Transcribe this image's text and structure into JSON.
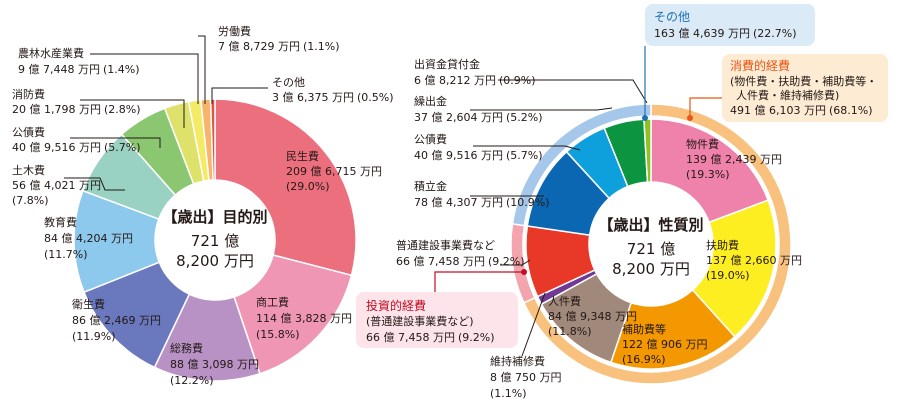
{
  "chart_data": [
    {
      "type": "pie",
      "center": {
        "title": "【歳出】目的別",
        "line1": "721 億",
        "line2": "8,200 万円"
      },
      "slices": [
        {
          "name": "民生費",
          "amount": "209 億 6,715 万円",
          "percent_label": "(29.0%)",
          "value": 29.0,
          "color": "#ec6f7d"
        },
        {
          "name": "商工費",
          "amount": "114 億 3,828 万円",
          "percent_label": "(15.8%)",
          "value": 15.8,
          "color": "#f096b5"
        },
        {
          "name": "総務費",
          "amount": "88 億 3,098 万円",
          "percent_label": "(12.2%)",
          "value": 12.2,
          "color": "#b992c5"
        },
        {
          "name": "衛生費",
          "amount": "86 億 2,469 万円",
          "percent_label": "(11.9%)",
          "value": 11.9,
          "color": "#6a78bd"
        },
        {
          "name": "教育費",
          "amount": "84 億 4,204 万円",
          "percent_label": "(11.7%)",
          "value": 11.7,
          "color": "#8dc9ec"
        },
        {
          "name": "土木費",
          "amount": "56 億 4,021 万円",
          "percent_label": "(7.8%)",
          "value": 7.8,
          "color": "#99d2c3"
        },
        {
          "name": "公債費",
          "amount": "40 億 9,516 万円",
          "percent_label": "(5.7%)",
          "value": 5.7,
          "color": "#8bc770"
        },
        {
          "name": "消防費",
          "amount": "20 億 1,798 万円",
          "percent_label": "(2.8%)",
          "value": 2.8,
          "color": "#dfe26a"
        },
        {
          "name": "農林水産業費",
          "amount": "9 億 7,448 万円",
          "percent_label": "(1.4%)",
          "value": 1.4,
          "color": "#f4ea66"
        },
        {
          "name": "労働費",
          "amount": "7 億 8,729 万円",
          "percent_label": "(1.1%)",
          "value": 1.1,
          "color": "#f7b56c"
        },
        {
          "name": "その他",
          "amount": "3 億 6,375 万円",
          "percent_label": "(0.5%)",
          "value": 0.5,
          "color": "#e8523d"
        }
      ]
    },
    {
      "type": "pie",
      "center": {
        "title": "【歳出】性質別",
        "line1": "721 億",
        "line2": "8,200 万円"
      },
      "slices": [
        {
          "name": "物件費",
          "amount": "139 億 2,439 万円",
          "percent_label": "(19.3%)",
          "value": 19.3,
          "color": "#ef82ab"
        },
        {
          "name": "扶助費",
          "amount": "137 億 2,660 万円",
          "percent_label": "(19.0%)",
          "value": 19.0,
          "color": "#fdee21"
        },
        {
          "name": "補助費等",
          "amount": "122 億 906 万円",
          "percent_label": "(16.9%)",
          "value": 16.9,
          "color": "#f39800"
        },
        {
          "name": "人件費",
          "amount": "84 億 9,348 万円",
          "percent_label": "(11.8%)",
          "value": 11.8,
          "color": "#a0887b"
        },
        {
          "name": "維持補修費",
          "amount": "8 億 750 万円",
          "percent_label": "(1.1%)",
          "value": 1.1,
          "color": "#6f3a93"
        },
        {
          "name": "普通建設事業費など",
          "amount": "66 億 7,458 万円",
          "percent_label": "(9.2%)",
          "value": 9.2,
          "color": "#e83828"
        },
        {
          "name": "積立金",
          "amount": "78 億 4,307 万円",
          "percent_label": "(10.9%)",
          "value": 10.9,
          "color": "#0b67b2"
        },
        {
          "name": "公債費",
          "amount": "40 億 9,516 万円",
          "percent_label": "(5.7%)",
          "value": 5.7,
          "color": "#0ea0dc"
        },
        {
          "name": "繰出金",
          "amount": "37 億 2,604 万円",
          "percent_label": "(5.2%)",
          "value": 5.2,
          "color": "#0c9441"
        },
        {
          "name": "出資金貸付金",
          "amount": "6 億 8,212 万円",
          "percent_label": "(0.9%)",
          "value": 0.9,
          "color": "#8cc11f"
        }
      ],
      "groups": [
        {
          "name": "消費的経費",
          "detail1": "(物件費・扶助費・補助費等・",
          "detail2": "人件費・維持補修費)",
          "amount": "491 億 6,103 万円",
          "percent_label": "(68.1%)",
          "value": 68.1,
          "color": "#f8c27e",
          "title_color": "#ea5514",
          "box_color": "#fdebd3"
        },
        {
          "name": "投資的経費",
          "detail1": "(普通建設事業費など)",
          "amount": "66 億 7,458 万円",
          "percent_label": "(9.2%)",
          "value": 9.2,
          "color": "#f3a4ae",
          "title_color": "#c30d23",
          "box_color": "#fce4ea"
        },
        {
          "name": "その他",
          "amount": "163 億 4,639 万円",
          "percent_label": "(22.7%)",
          "value": 22.7,
          "color": "#a5c8ea",
          "title_color": "#1d71b8",
          "box_color": "#dbeaf7"
        }
      ]
    }
  ]
}
